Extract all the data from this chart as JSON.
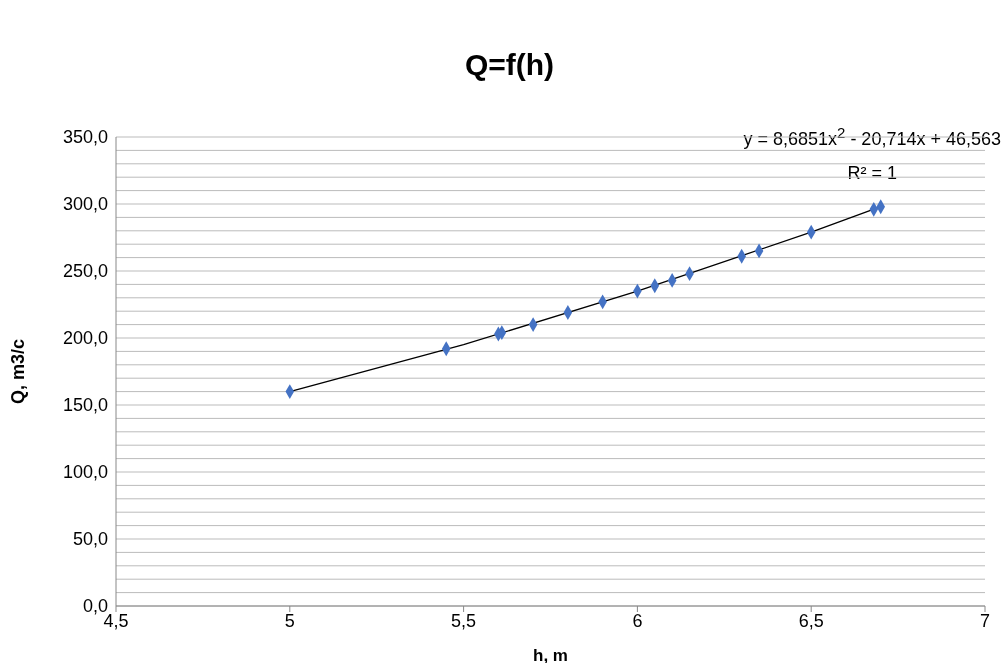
{
  "chart_data": {
    "type": "scatter",
    "title": "Q=f(h)",
    "xlabel": "h, m",
    "ylabel": "Q, m3/c",
    "annotations": [
      "y = 8,6851x$^{2}$ - 20,714x + 46,563",
      "R² = 1"
    ],
    "xlim": [
      4.5,
      7
    ],
    "xticks": [
      {
        "value": 4.5,
        "label": "4,5"
      },
      5,
      {
        "value": 5.5,
        "label": "5,5"
      },
      6,
      {
        "value": 6.5,
        "label": "6,5"
      },
      7
    ],
    "ylim": [
      0,
      350
    ],
    "yticks": [
      {
        "value": 0,
        "label": "0,0"
      },
      {
        "value": 10,
        "label": null
      },
      {
        "value": 20,
        "label": null
      },
      {
        "value": 30,
        "label": null
      },
      {
        "value": 40,
        "label": null
      },
      {
        "value": 50,
        "label": "50,0"
      },
      {
        "value": 60,
        "label": null
      },
      {
        "value": 70,
        "label": null
      },
      {
        "value": 80,
        "label": null
      },
      {
        "value": 90,
        "label": null
      },
      {
        "value": 100,
        "label": "100,0"
      },
      {
        "value": 110,
        "label": null
      },
      {
        "value": 120,
        "label": null
      },
      {
        "value": 130,
        "label": null
      },
      {
        "value": 140,
        "label": null
      },
      {
        "value": 150,
        "label": "150,0"
      },
      {
        "value": 160,
        "label": null
      },
      {
        "value": 170,
        "label": null
      },
      {
        "value": 180,
        "label": null
      },
      {
        "value": 190,
        "label": null
      },
      {
        "value": 200,
        "label": "200,0"
      },
      {
        "value": 210,
        "label": null
      },
      {
        "value": 220,
        "label": null
      },
      {
        "value": 230,
        "label": null
      },
      {
        "value": 240,
        "label": null
      },
      {
        "value": 250,
        "label": "250,0"
      },
      {
        "value": 260,
        "label": null
      },
      {
        "value": 270,
        "label": null
      },
      {
        "value": 280,
        "label": null
      },
      {
        "value": 290,
        "label": null
      },
      {
        "value": 300,
        "label": "300,0"
      },
      {
        "value": 310,
        "label": null
      },
      {
        "value": 320,
        "label": null
      },
      {
        "value": 330,
        "label": null
      },
      {
        "value": 340,
        "label": null
      },
      {
        "value": 350,
        "label": "350,0"
      }
    ],
    "grid": "y",
    "series": [
      {
        "color": "#4472c4",
        "marker": "diamond",
        "x": [
          5,
          5.45,
          5.6,
          5.61,
          5.7,
          5.8,
          5.9,
          6,
          6.05,
          6.1,
          6.15,
          6.3,
          6.35,
          6.5,
          6.68,
          6.7
        ],
        "values": [
          160,
          192,
          203,
          204,
          210,
          219,
          227,
          235,
          239,
          243,
          248,
          261,
          265,
          279,
          296,
          298
        ]
      },
      {
        "type": "line",
        "color": "#000000",
        "marker": "none",
        "x": [
          5,
          5.5,
          6,
          6.5,
          6.7
        ],
        "values": [
          160,
          195,
          235,
          279,
          298
        ]
      }
    ]
  }
}
